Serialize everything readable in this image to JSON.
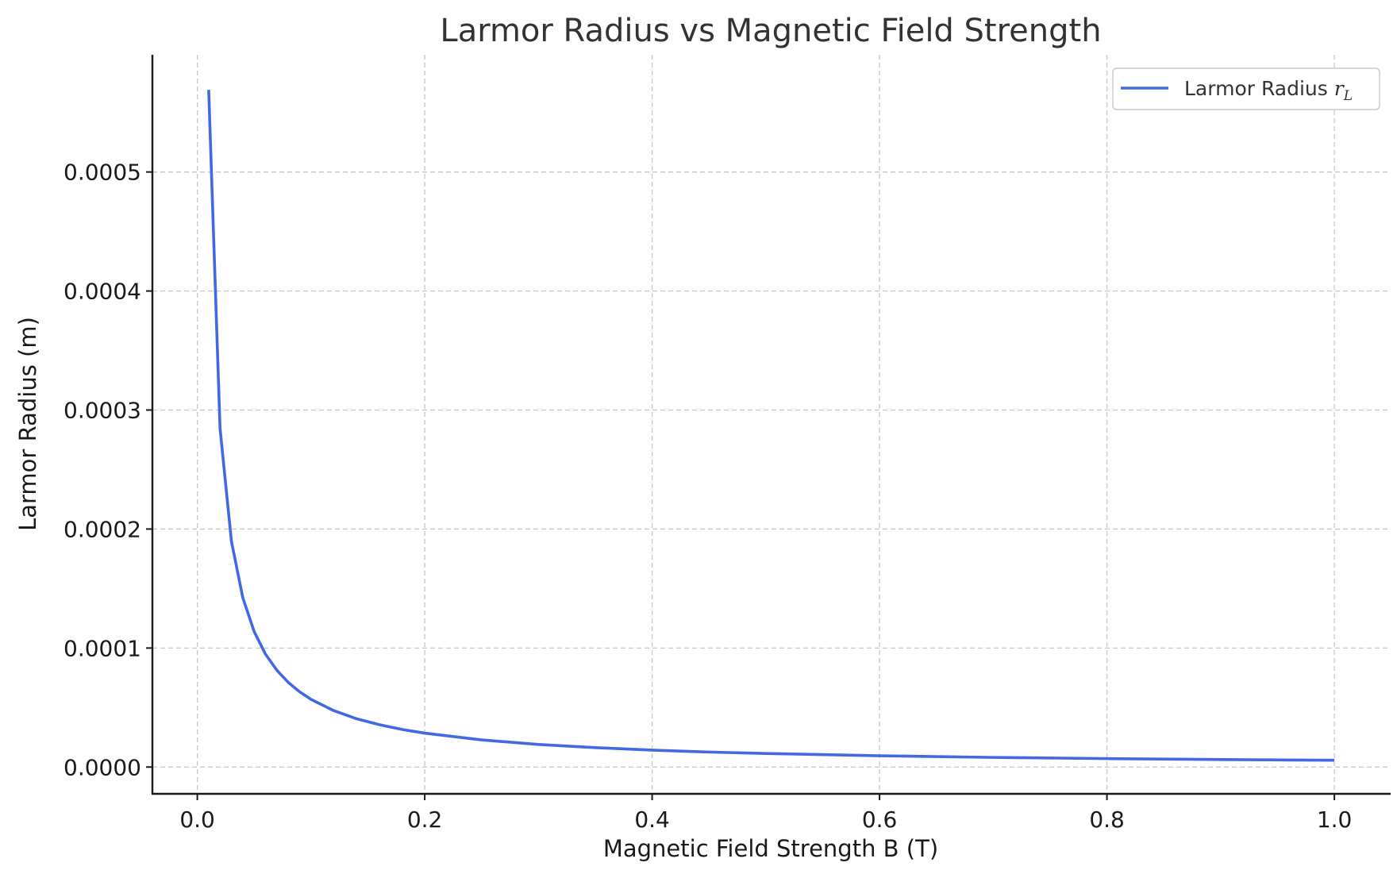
{
  "chart_data": {
    "type": "line",
    "title": "Larmor Radius vs Magnetic Field Strength",
    "xlabel": "Magnetic Field Strength B (T)",
    "ylabel": "Larmor Radius (m)",
    "xlim": [
      -0.0395,
      1.0495
    ],
    "ylim": [
      -2.25e-05,
      0.0005985
    ],
    "x_ticks": [
      0.0,
      0.2,
      0.4,
      0.6,
      0.8,
      1.0
    ],
    "x_tick_labels": [
      "0.0",
      "0.2",
      "0.4",
      "0.6",
      "0.8",
      "1.0"
    ],
    "y_ticks": [
      0.0,
      0.0001,
      0.0002,
      0.0003,
      0.0004,
      0.0005
    ],
    "y_tick_labels": [
      "0.0000",
      "0.0001",
      "0.0002",
      "0.0003",
      "0.0004",
      "0.0005"
    ],
    "grid": true,
    "legend_position": "top-right",
    "series": [
      {
        "name": "Larmor Radius",
        "name_subscript": "r",
        "name_subscript_index": "L",
        "color": "#4169e1",
        "x": [
          0.01,
          0.02,
          0.03,
          0.04,
          0.05,
          0.06,
          0.07,
          0.08,
          0.09,
          0.1,
          0.12,
          0.14,
          0.16,
          0.18,
          0.2,
          0.25,
          0.3,
          0.35,
          0.4,
          0.45,
          0.5,
          0.6,
          0.7,
          0.8,
          0.9,
          1.0
        ],
        "y": [
          0.000569,
          0.0002845,
          0.0001897,
          0.0001423,
          0.0001138,
          9.48e-05,
          8.13e-05,
          7.11e-05,
          6.32e-05,
          5.69e-05,
          4.74e-05,
          4.06e-05,
          3.56e-05,
          3.16e-05,
          2.85e-05,
          2.28e-05,
          1.9e-05,
          1.63e-05,
          1.42e-05,
          1.26e-05,
          1.14e-05,
          9.5e-06,
          8.1e-06,
          7.1e-06,
          6.3e-06,
          5.7e-06
        ]
      }
    ]
  }
}
